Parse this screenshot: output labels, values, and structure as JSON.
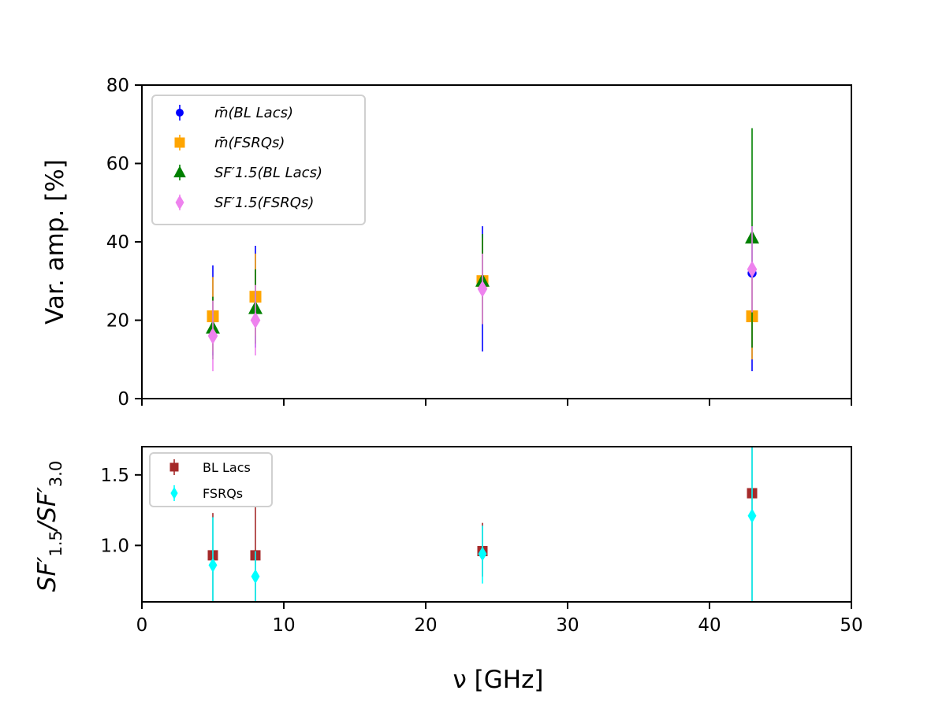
{
  "chart_data": [
    {
      "type": "scatter",
      "title": "",
      "xlabel": "",
      "ylabel": "Var. amp. [%]",
      "xlim": [
        0,
        50
      ],
      "ylim": [
        0,
        80
      ],
      "xticks": [
        0,
        10,
        20,
        30,
        40,
        50
      ],
      "yticks": [
        0,
        20,
        40,
        60,
        80
      ],
      "x_tick_labels_visible": false,
      "grid": false,
      "legend_position": "upper-left",
      "series": [
        {
          "name": "m̄(BL Lacs)",
          "marker": "circle",
          "color": "#0000ff",
          "points": [
            {
              "x": 5,
              "y": 21,
              "yerr_low": 11,
              "yerr_high": 34
            },
            {
              "x": 8,
              "y": 26,
              "yerr_low": 13,
              "yerr_high": 39
            },
            {
              "x": 24,
              "y": 29,
              "yerr_low": 12,
              "yerr_high": 44
            },
            {
              "x": 43,
              "y": 32,
              "yerr_low": 7,
              "yerr_high": 44
            }
          ]
        },
        {
          "name": "m̄(FSRQs)",
          "marker": "square",
          "color": "#ffa500",
          "points": [
            {
              "x": 5,
              "y": 21,
              "yerr_low": 12,
              "yerr_high": 31
            },
            {
              "x": 8,
              "y": 26,
              "yerr_low": 16,
              "yerr_high": 37
            },
            {
              "x": 24,
              "y": 30,
              "yerr_low": 19,
              "yerr_high": 41
            },
            {
              "x": 43,
              "y": 21,
              "yerr_low": 10,
              "yerr_high": 31
            }
          ]
        },
        {
          "name": "SF′1.5(BL Lacs)",
          "marker": "triangle",
          "color": "#008000",
          "points": [
            {
              "x": 5,
              "y": 18,
              "yerr_low": 10,
              "yerr_high": 26
            },
            {
              "x": 8,
              "y": 23,
              "yerr_low": 14,
              "yerr_high": 33
            },
            {
              "x": 24,
              "y": 30,
              "yerr_low": 19,
              "yerr_high": 42
            },
            {
              "x": 43,
              "y": 41,
              "yerr_low": 13,
              "yerr_high": 69
            }
          ]
        },
        {
          "name": "SF′1.5(FSRQs)",
          "marker": "diamond",
          "color": "#ee82ee",
          "points": [
            {
              "x": 5,
              "y": 16,
              "yerr_low": 7,
              "yerr_high": 25
            },
            {
              "x": 8,
              "y": 20,
              "yerr_low": 11,
              "yerr_high": 29
            },
            {
              "x": 24,
              "y": 28,
              "yerr_low": 19,
              "yerr_high": 37
            },
            {
              "x": 43,
              "y": 33,
              "yerr_low": 22,
              "yerr_high": 44
            }
          ]
        }
      ]
    },
    {
      "type": "scatter",
      "title": "",
      "xlabel": "ν [GHz]",
      "ylabel": "SF′1.5/SF′3.0",
      "xlim": [
        0,
        50
      ],
      "ylim": [
        0.6,
        1.7
      ],
      "xticks": [
        0,
        10,
        20,
        30,
        40,
        50
      ],
      "yticks": [
        1.0,
        1.5
      ],
      "grid": false,
      "legend_position": "upper-left",
      "series": [
        {
          "name": "BL Lacs",
          "marker": "square",
          "color": "#a52a2a",
          "points": [
            {
              "x": 5,
              "y": 0.93,
              "yerr_low": 0.6,
              "yerr_high": 1.23
            },
            {
              "x": 8,
              "y": 0.93,
              "yerr_low": 0.6,
              "yerr_high": 1.27
            },
            {
              "x": 24,
              "y": 0.96,
              "yerr_low": 0.78,
              "yerr_high": 1.16
            },
            {
              "x": 43,
              "y": 1.37,
              "yerr_low": 0.6,
              "yerr_high": 1.7
            }
          ]
        },
        {
          "name": "FSRQs",
          "marker": "diamond",
          "color": "#00ffff",
          "points": [
            {
              "x": 5,
              "y": 0.86,
              "yerr_low": 0.6,
              "yerr_high": 1.2
            },
            {
              "x": 8,
              "y": 0.78,
              "yerr_low": 0.6,
              "yerr_high": 0.96
            },
            {
              "x": 24,
              "y": 0.94,
              "yerr_low": 0.73,
              "yerr_high": 1.14
            },
            {
              "x": 43,
              "y": 1.21,
              "yerr_low": 0.6,
              "yerr_high": 1.7
            }
          ]
        }
      ]
    }
  ]
}
